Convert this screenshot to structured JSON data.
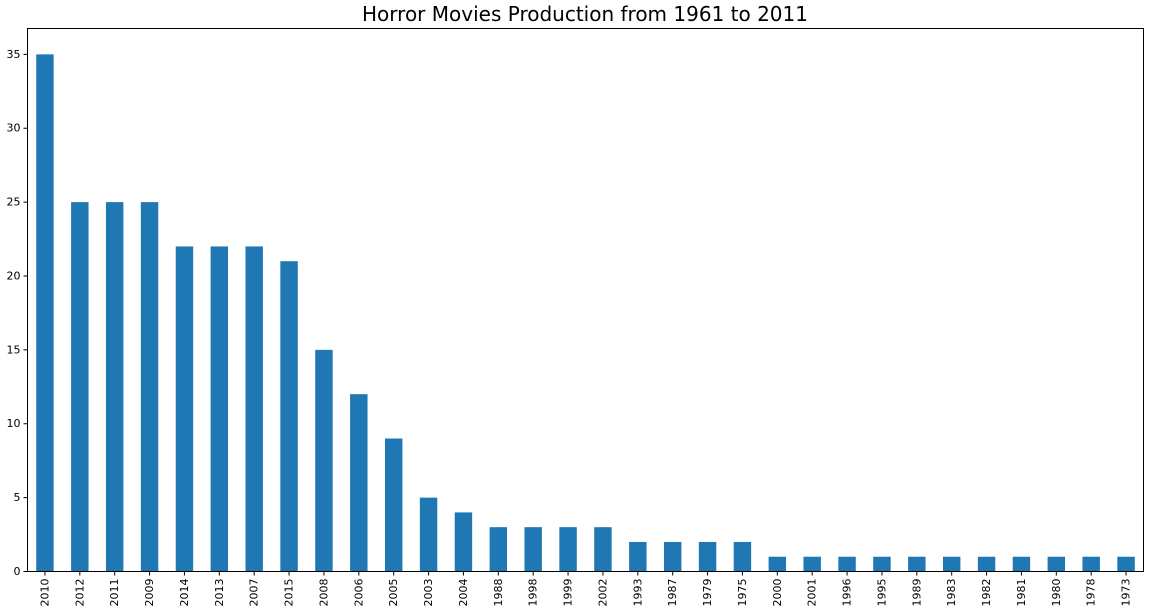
{
  "chart_data": {
    "type": "bar",
    "title": "Horror Movies Production from 1961 to 2011",
    "xlabel": "",
    "ylabel": "",
    "categories": [
      "2010",
      "2012",
      "2011",
      "2009",
      "2014",
      "2013",
      "2007",
      "2015",
      "2008",
      "2006",
      "2005",
      "2003",
      "2004",
      "1988",
      "1998",
      "1999",
      "2002",
      "1993",
      "1987",
      "1979",
      "1975",
      "2000",
      "2001",
      "1996",
      "1995",
      "1989",
      "1983",
      "1982",
      "1981",
      "1980",
      "1978",
      "1973"
    ],
    "values": [
      35,
      25,
      25,
      25,
      22,
      22,
      22,
      21,
      15,
      12,
      9,
      5,
      4,
      3,
      3,
      3,
      3,
      2,
      2,
      2,
      2,
      1,
      1,
      1,
      1,
      1,
      1,
      1,
      1,
      1,
      1,
      1
    ],
    "ylim": [
      0,
      36.75
    ],
    "yticks": [
      0,
      5,
      10,
      15,
      20,
      25,
      30,
      35
    ],
    "grid": false,
    "bar_color": "#1f77b4"
  }
}
